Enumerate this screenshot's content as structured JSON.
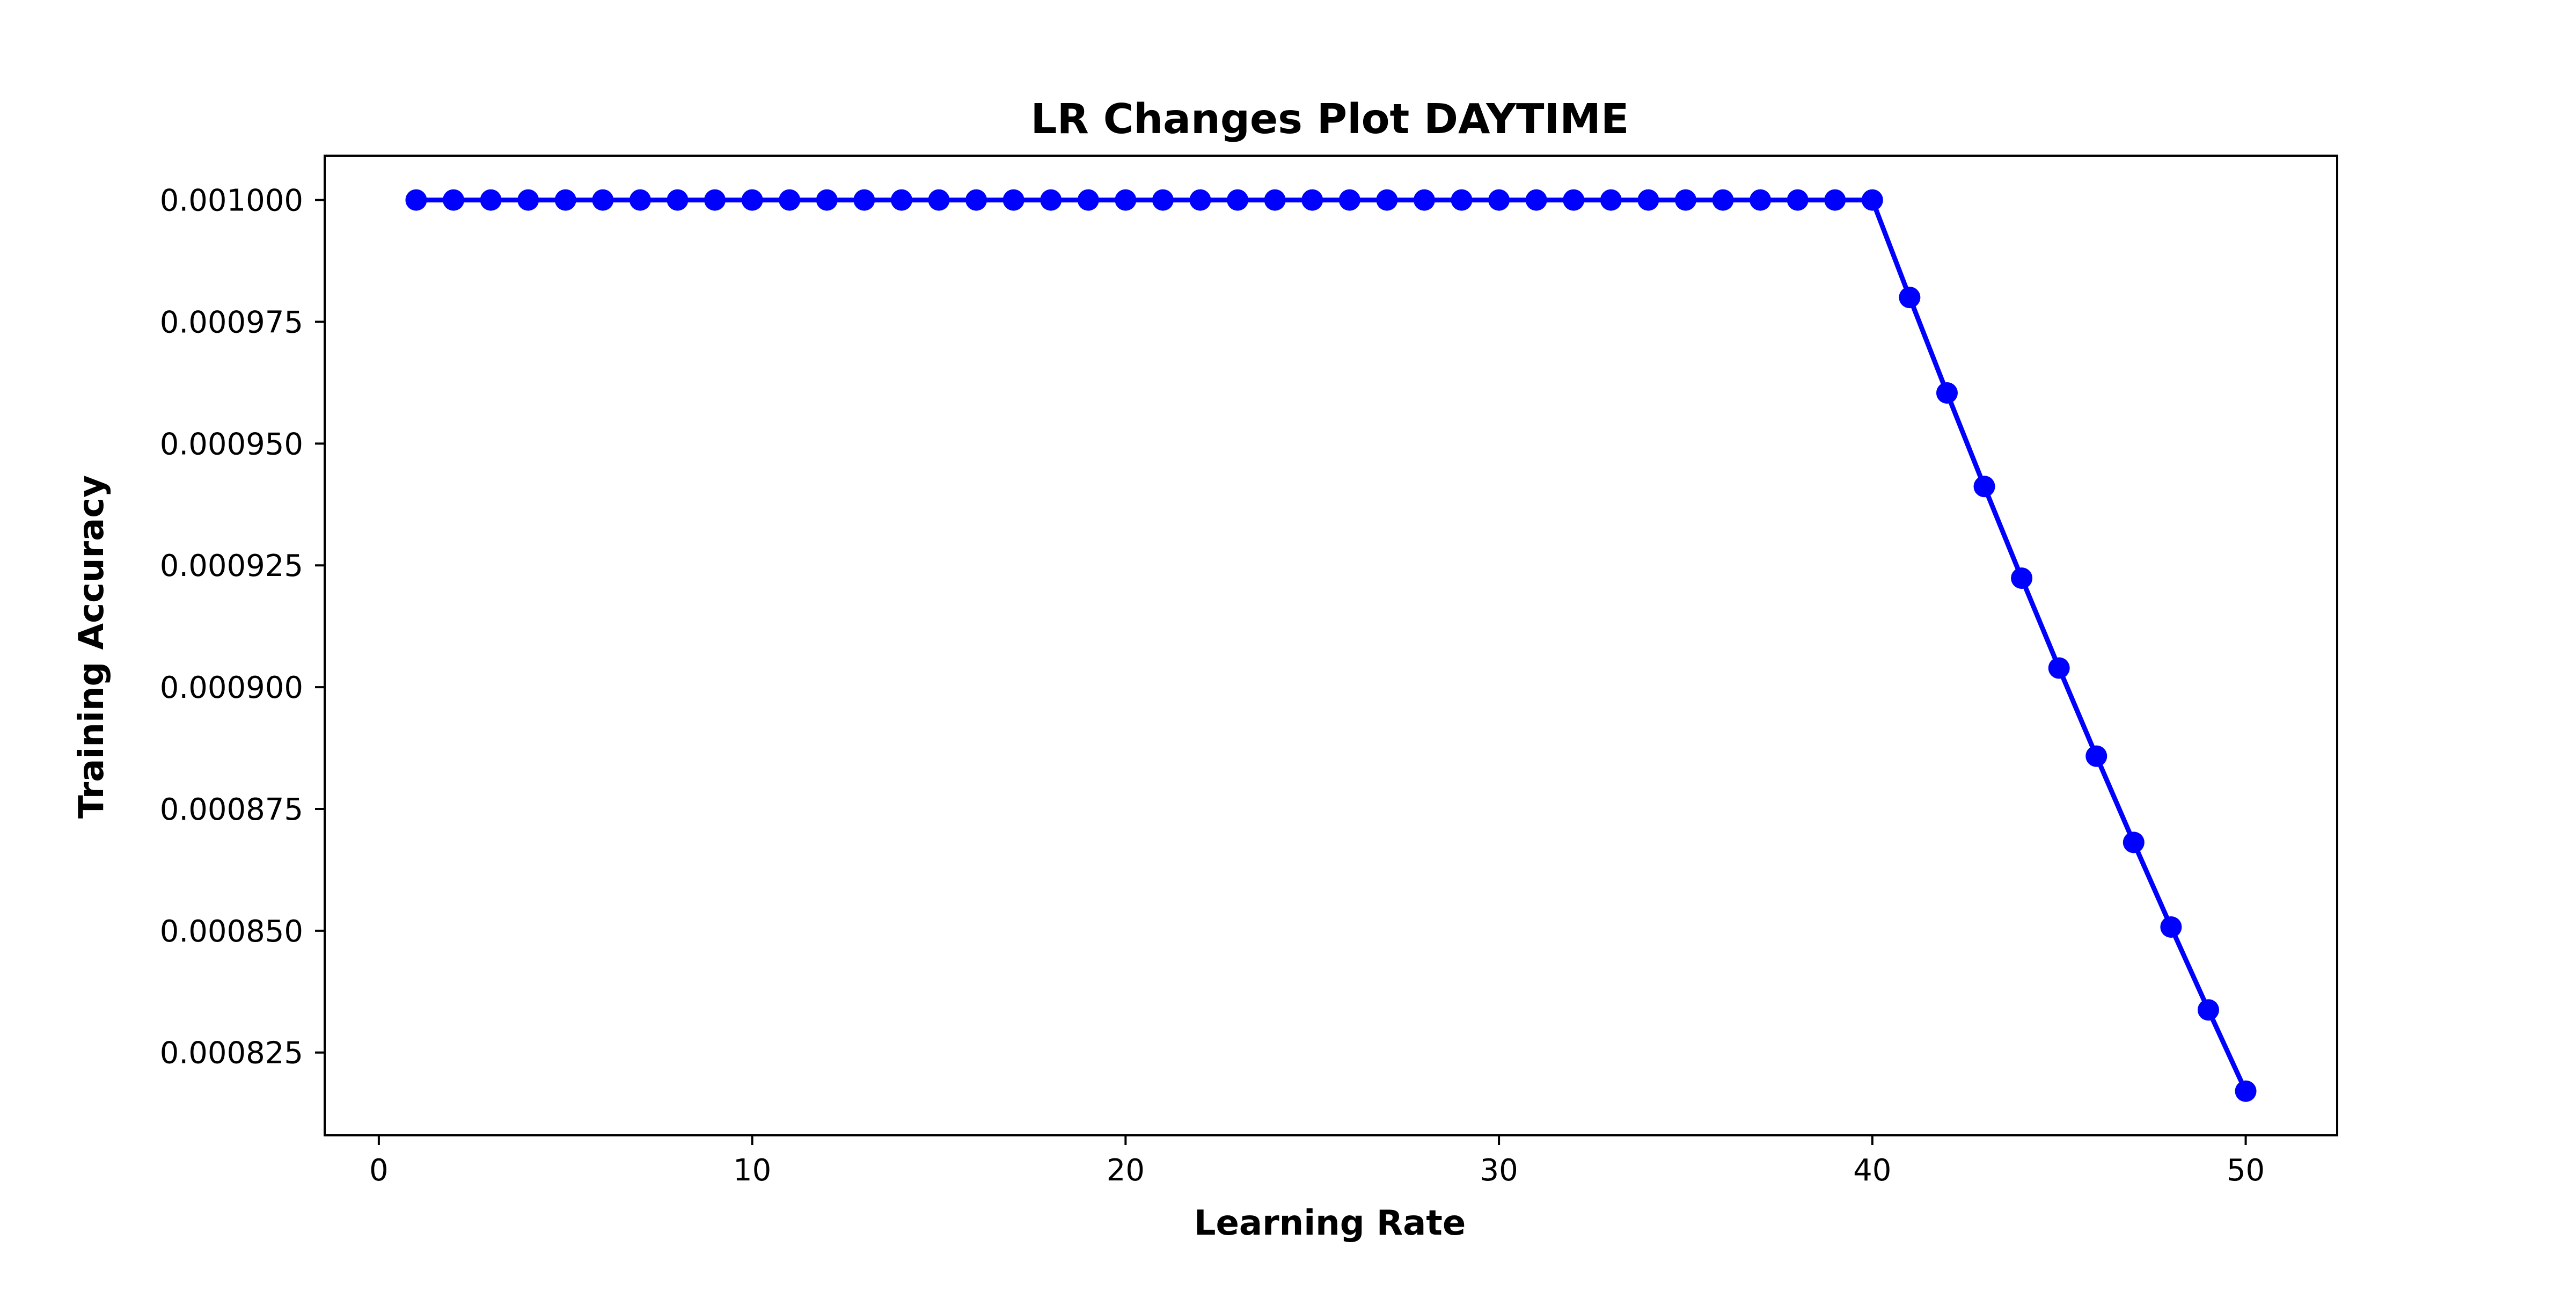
{
  "chart_data": {
    "type": "line",
    "title": "LR Changes Plot DAYTIME",
    "xlabel": "Learning Rate",
    "ylabel": "Training Accuracy",
    "xlim": [
      -1.45,
      52.45
    ],
    "ylim": [
      0.000808,
      0.0010091
    ],
    "xticks": [
      0,
      10,
      20,
      30,
      40,
      50
    ],
    "xtick_labels": [
      "0",
      "10",
      "20",
      "30",
      "40",
      "50"
    ],
    "yticks": [
      0.000825,
      0.00085,
      0.000875,
      0.0009,
      0.000925,
      0.00095,
      0.000975,
      0.001
    ],
    "ytick_labels": [
      "0.000825",
      "0.000850",
      "0.000875",
      "0.000900",
      "0.000925",
      "0.000950",
      "0.000975",
      "0.001000"
    ],
    "grid": false,
    "legend": "none",
    "series": [
      {
        "color": "#0000ff",
        "marker": "circle",
        "x": [
          1,
          2,
          3,
          4,
          5,
          6,
          7,
          8,
          9,
          10,
          11,
          12,
          13,
          14,
          15,
          16,
          17,
          18,
          19,
          20,
          21,
          22,
          23,
          24,
          25,
          26,
          27,
          28,
          29,
          30,
          31,
          32,
          33,
          34,
          35,
          36,
          37,
          38,
          39,
          40,
          41,
          42,
          43,
          44,
          45,
          46,
          47,
          48,
          49,
          50
        ],
        "y": [
          0.001,
          0.001,
          0.001,
          0.001,
          0.001,
          0.001,
          0.001,
          0.001,
          0.001,
          0.001,
          0.001,
          0.001,
          0.001,
          0.001,
          0.001,
          0.001,
          0.001,
          0.001,
          0.001,
          0.001,
          0.001,
          0.001,
          0.001,
          0.001,
          0.001,
          0.001,
          0.001,
          0.001,
          0.001,
          0.001,
          0.001,
          0.001,
          0.001,
          0.001,
          0.001,
          0.001,
          0.001,
          0.001,
          0.001,
          0.001,
          0.00098,
          0.0009604,
          0.00094119,
          0.00092237,
          0.00090392,
          0.00088584,
          0.00086813,
          0.00085076,
          0.00083375,
          0.00081707
        ]
      }
    ]
  }
}
